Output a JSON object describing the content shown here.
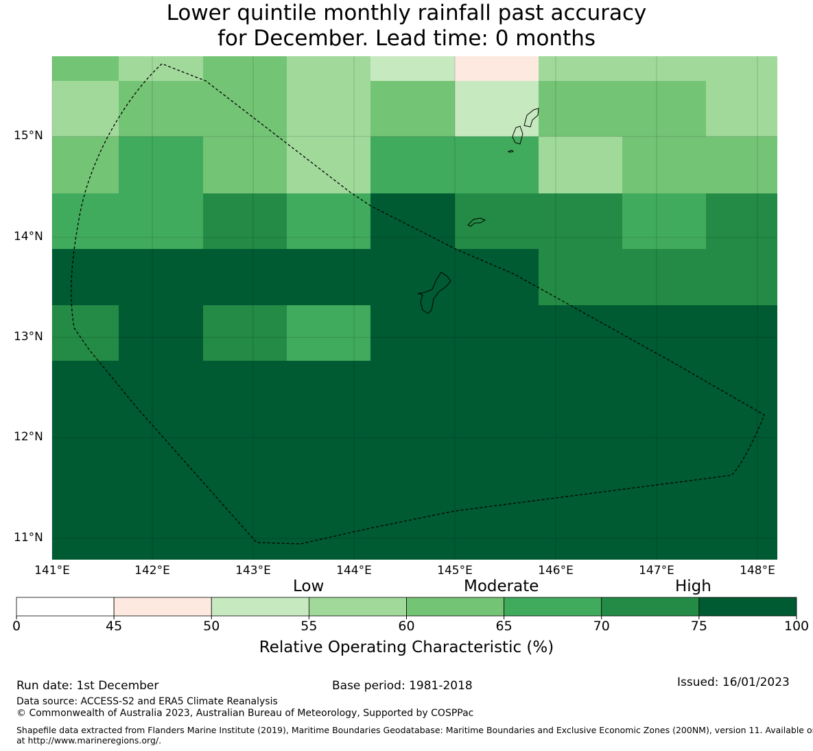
{
  "title": {
    "line1": "Lower quintile monthly rainfall past accuracy",
    "line2": "for December. Lead time: 0 months"
  },
  "map": {
    "lon_ticks": [
      "141°E",
      "142°E",
      "143°E",
      "144°E",
      "145°E",
      "146°E",
      "147°E",
      "148°E"
    ],
    "lat_ticks": [
      "15°N",
      "14°N",
      "13°N",
      "12°N",
      "11°N"
    ],
    "grid_values": [
      [
        60,
        55,
        60,
        55,
        50,
        45,
        55,
        55,
        55
      ],
      [
        55,
        60,
        60,
        55,
        60,
        50,
        60,
        60,
        55
      ],
      [
        60,
        65,
        60,
        55,
        65,
        65,
        55,
        60,
        60
      ],
      [
        65,
        65,
        70,
        65,
        75,
        70,
        70,
        65,
        70
      ],
      [
        75,
        100,
        100,
        100,
        100,
        75,
        70,
        70,
        70
      ],
      [
        70,
        75,
        70,
        65,
        100,
        75,
        100,
        75,
        100
      ],
      [
        100,
        100,
        100,
        100,
        100,
        100,
        100,
        100,
        100
      ],
      [
        100,
        75,
        100,
        100,
        100,
        100,
        100,
        100,
        100
      ],
      [
        100,
        75,
        100,
        75,
        100,
        100,
        100,
        100,
        75
      ],
      [
        100,
        75,
        100,
        100,
        75,
        100,
        100,
        100,
        75
      ]
    ]
  },
  "legend": {
    "categories": [
      "Low",
      "Moderate",
      "High"
    ],
    "bins": [
      {
        "from": 0,
        "to": 45,
        "color": "#ffffff"
      },
      {
        "from": 45,
        "to": 50,
        "color": "#fee9e0"
      },
      {
        "from": 50,
        "to": 55,
        "color": "#c7e9c0"
      },
      {
        "from": 55,
        "to": 60,
        "color": "#a1d99b"
      },
      {
        "from": 60,
        "to": 65,
        "color": "#74c476"
      },
      {
        "from": 65,
        "to": 70,
        "color": "#41ab5d"
      },
      {
        "from": 70,
        "to": 75,
        "color": "#238b45"
      },
      {
        "from": 75,
        "to": 100,
        "color": "#005a32"
      }
    ],
    "tick_labels": [
      "0",
      "45",
      "50",
      "55",
      "60",
      "65",
      "70",
      "75",
      "100"
    ],
    "axis_label": "Relative Operating Characteristic (%)"
  },
  "footer": {
    "run_date": "Run date: 1st December",
    "base_period": "Base period: 1981-2018",
    "issued": "Issued: 16/01/2023",
    "data_source": "Data source: ACCESS-S2 and ERA5 Climate Reanalysis",
    "copyright": "© Commonwealth of Australia 2023, Australian Bureau of Meteorology, Supported by COSPPac",
    "shapefile_line1": "Shapefile data extracted from Flanders Marine Institute (2019), Maritime Boundaries Geodatabase: Maritime Boundaries and Exclusive Economic Zones (200NM), version 11. Available online",
    "shapefile_line2": "at http://www.marineregions.org/."
  }
}
